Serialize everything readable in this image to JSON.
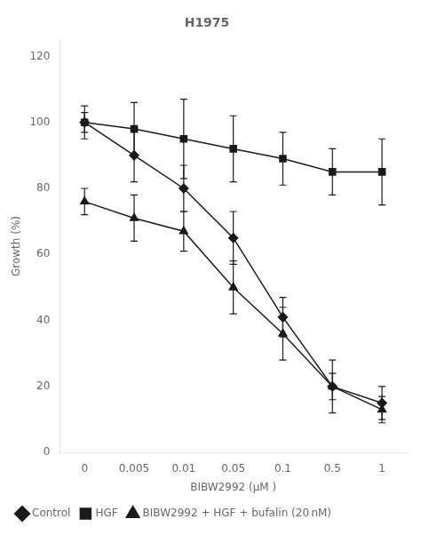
{
  "chart_data": {
    "type": "line",
    "title": "H1975",
    "x_label": "BIBW2992 (μM )",
    "y_label": "Growth (%)",
    "categories": [
      "0",
      "0.005",
      "0.01",
      "0.05",
      "0.1",
      "0.5",
      "1"
    ],
    "series": [
      {
        "name": "Control",
        "color": "#1a1a1a",
        "marker": "diamond",
        "values": [
          100,
          90,
          80,
          65,
          41,
          20,
          15
        ],
        "errors": [
          3,
          8,
          7,
          8,
          6,
          4,
          5
        ]
      },
      {
        "name": "HGF",
        "color": "#1a1a1a",
        "marker": "square",
        "values": [
          100,
          98,
          95,
          92,
          89,
          85,
          85
        ],
        "errors": [
          5,
          8,
          12,
          10,
          8,
          7,
          10
        ]
      },
      {
        "name": "BIBW2992 + HGF + bufalin (20 nM)",
        "color": "#1a1a1a",
        "marker": "triangle",
        "values": [
          76,
          71,
          67,
          50,
          36,
          20,
          13
        ],
        "errors": [
          4,
          7,
          6,
          8,
          8,
          8,
          4
        ]
      }
    ],
    "ylim": [
      0,
      125
    ],
    "yticks": [
      0,
      20,
      40,
      60,
      80,
      100,
      120
    ],
    "grid": false,
    "legend": "lower left"
  }
}
